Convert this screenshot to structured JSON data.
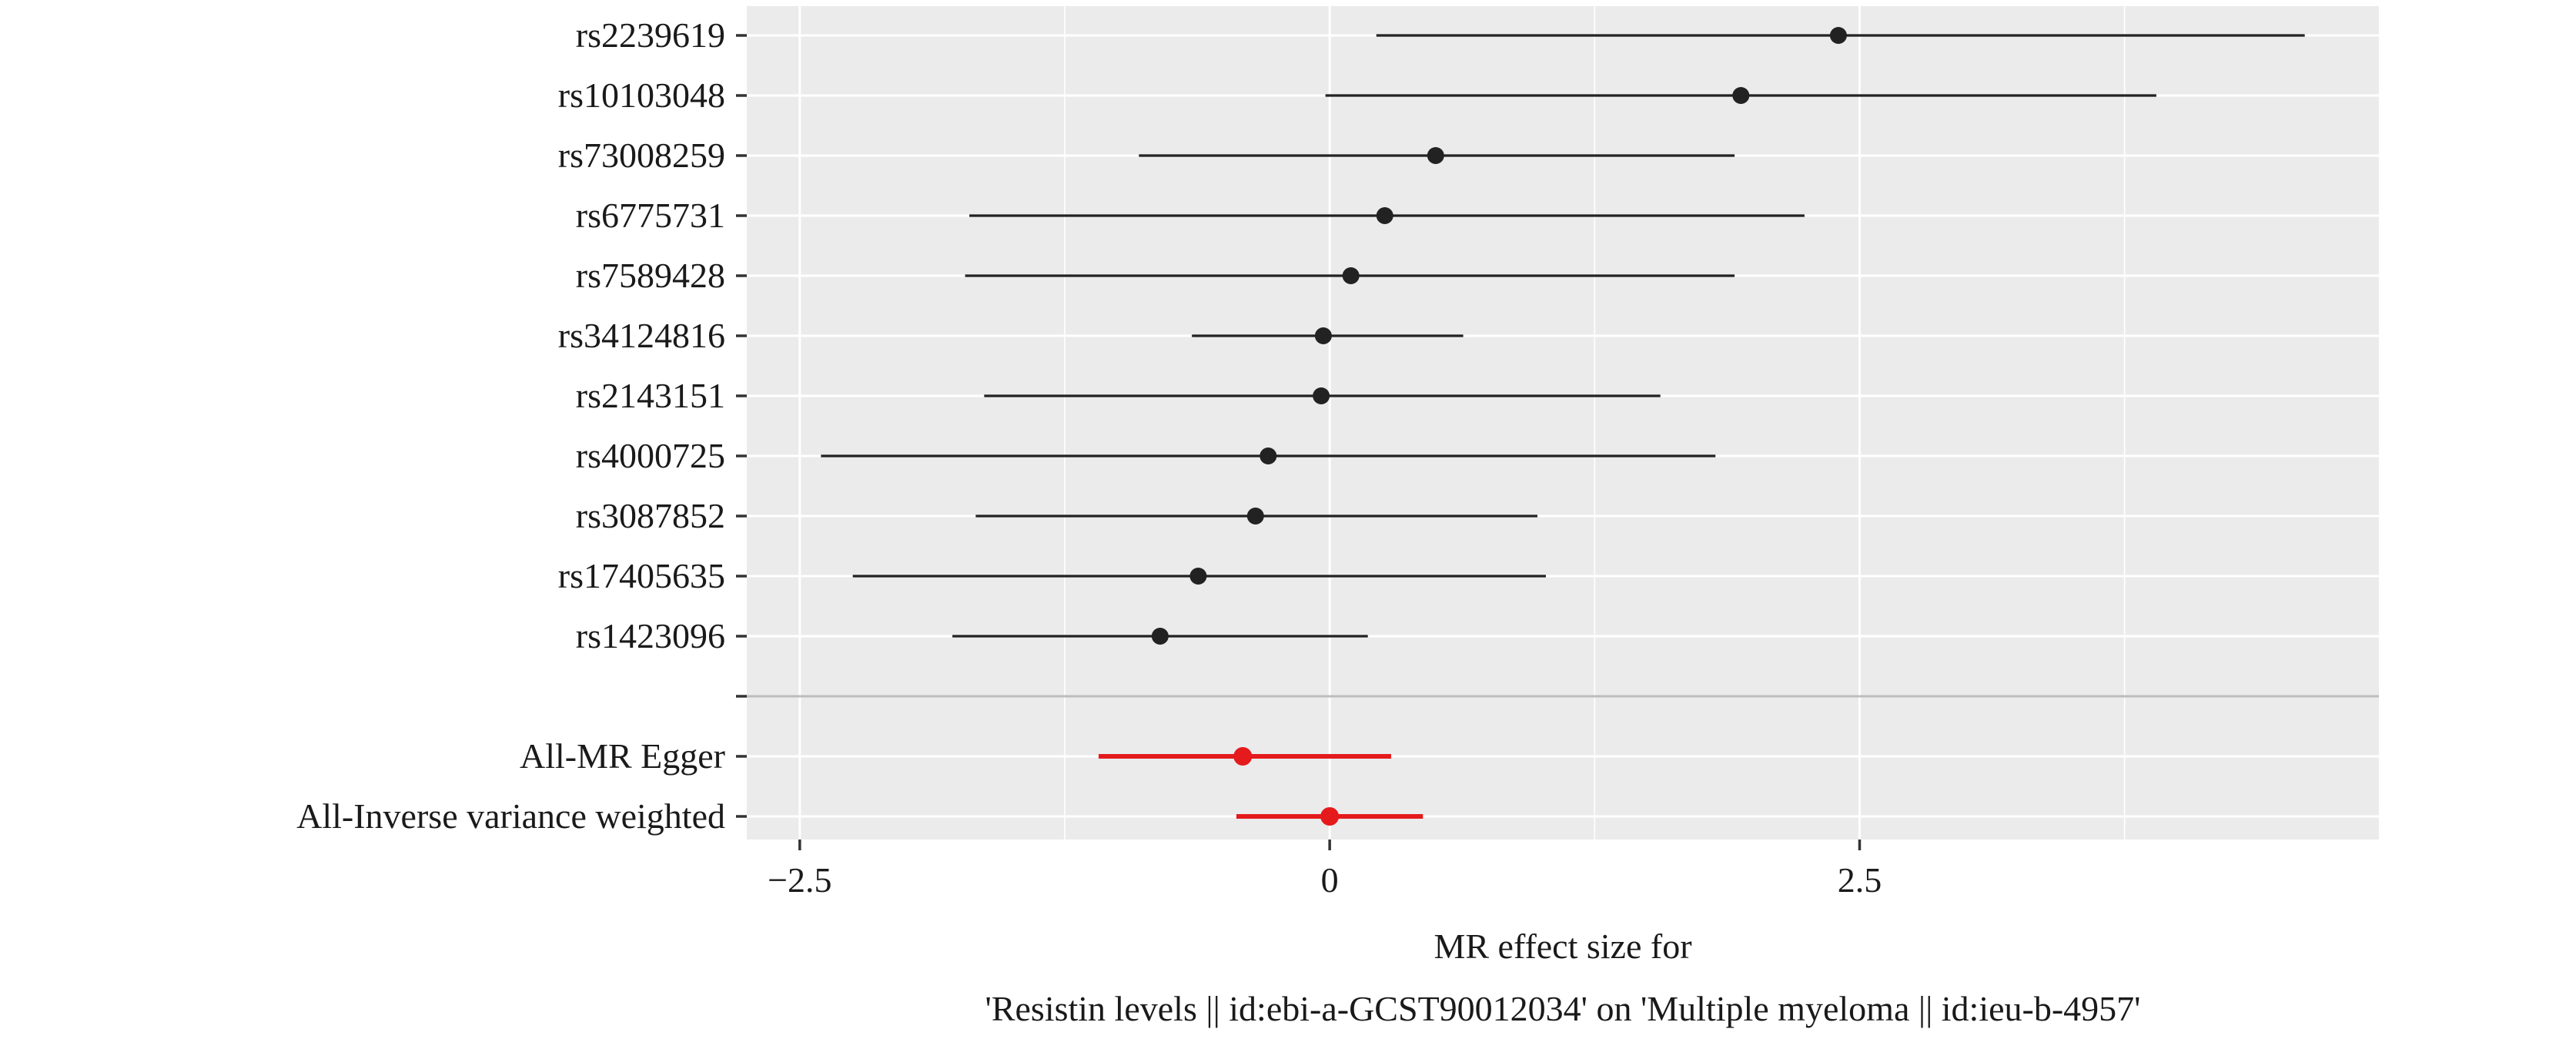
{
  "chart_data": {
    "type": "forest",
    "xlabel_line1": "MR effect size for",
    "xlabel_line2": "'Resistin levels || id:ebi-a-GCST90012034' on 'Multiple myeloma || id:ieu-b-4957'",
    "xlim": [
      -2.75,
      4.95
    ],
    "x_ticks": [
      {
        "value": -2.5,
        "label": "−2.5"
      },
      {
        "value": 0,
        "label": "0"
      },
      {
        "value": 2.5,
        "label": "2.5"
      }
    ],
    "minor_gridlines": [
      -1.25,
      1.25,
      3.75
    ],
    "grid": true,
    "colors": {
      "panel_background": "#ebebeb",
      "gridline": "#ffffff",
      "snp": "#222222",
      "summary": "#e41a1c",
      "separator": "#bdbdbd"
    },
    "rows": [
      {
        "label": "rs2239619",
        "b": 2.4,
        "lo": 0.22,
        "hi": 4.6,
        "group": "snp"
      },
      {
        "label": "rs10103048",
        "b": 1.94,
        "lo": -0.02,
        "hi": 3.9,
        "group": "snp"
      },
      {
        "label": "rs73008259",
        "b": 0.5,
        "lo": -0.9,
        "hi": 1.91,
        "group": "snp"
      },
      {
        "label": "rs6775731",
        "b": 0.26,
        "lo": -1.7,
        "hi": 2.24,
        "group": "snp"
      },
      {
        "label": "rs7589428",
        "b": 0.1,
        "lo": -1.72,
        "hi": 1.91,
        "group": "snp"
      },
      {
        "label": "rs34124816",
        "b": -0.03,
        "lo": -0.65,
        "hi": 0.63,
        "group": "snp"
      },
      {
        "label": "rs2143151",
        "b": -0.04,
        "lo": -1.63,
        "hi": 1.56,
        "group": "snp"
      },
      {
        "label": "rs4000725",
        "b": -0.29,
        "lo": -2.4,
        "hi": 1.82,
        "group": "snp"
      },
      {
        "label": "rs3087852",
        "b": -0.35,
        "lo": -1.67,
        "hi": 0.98,
        "group": "snp"
      },
      {
        "label": "rs17405635",
        "b": -0.62,
        "lo": -2.25,
        "hi": 1.02,
        "group": "snp"
      },
      {
        "label": "rs1423096",
        "b": -0.8,
        "lo": -1.78,
        "hi": 0.18,
        "group": "snp"
      },
      {
        "label": "",
        "b": null,
        "lo": null,
        "hi": null,
        "group": "separator"
      },
      {
        "label": "All-MR Egger",
        "b": -0.41,
        "lo": -1.09,
        "hi": 0.29,
        "group": "summary"
      },
      {
        "label": "All-Inverse variance weighted",
        "b": 0.0,
        "lo": -0.44,
        "hi": 0.44,
        "group": "summary"
      }
    ]
  }
}
